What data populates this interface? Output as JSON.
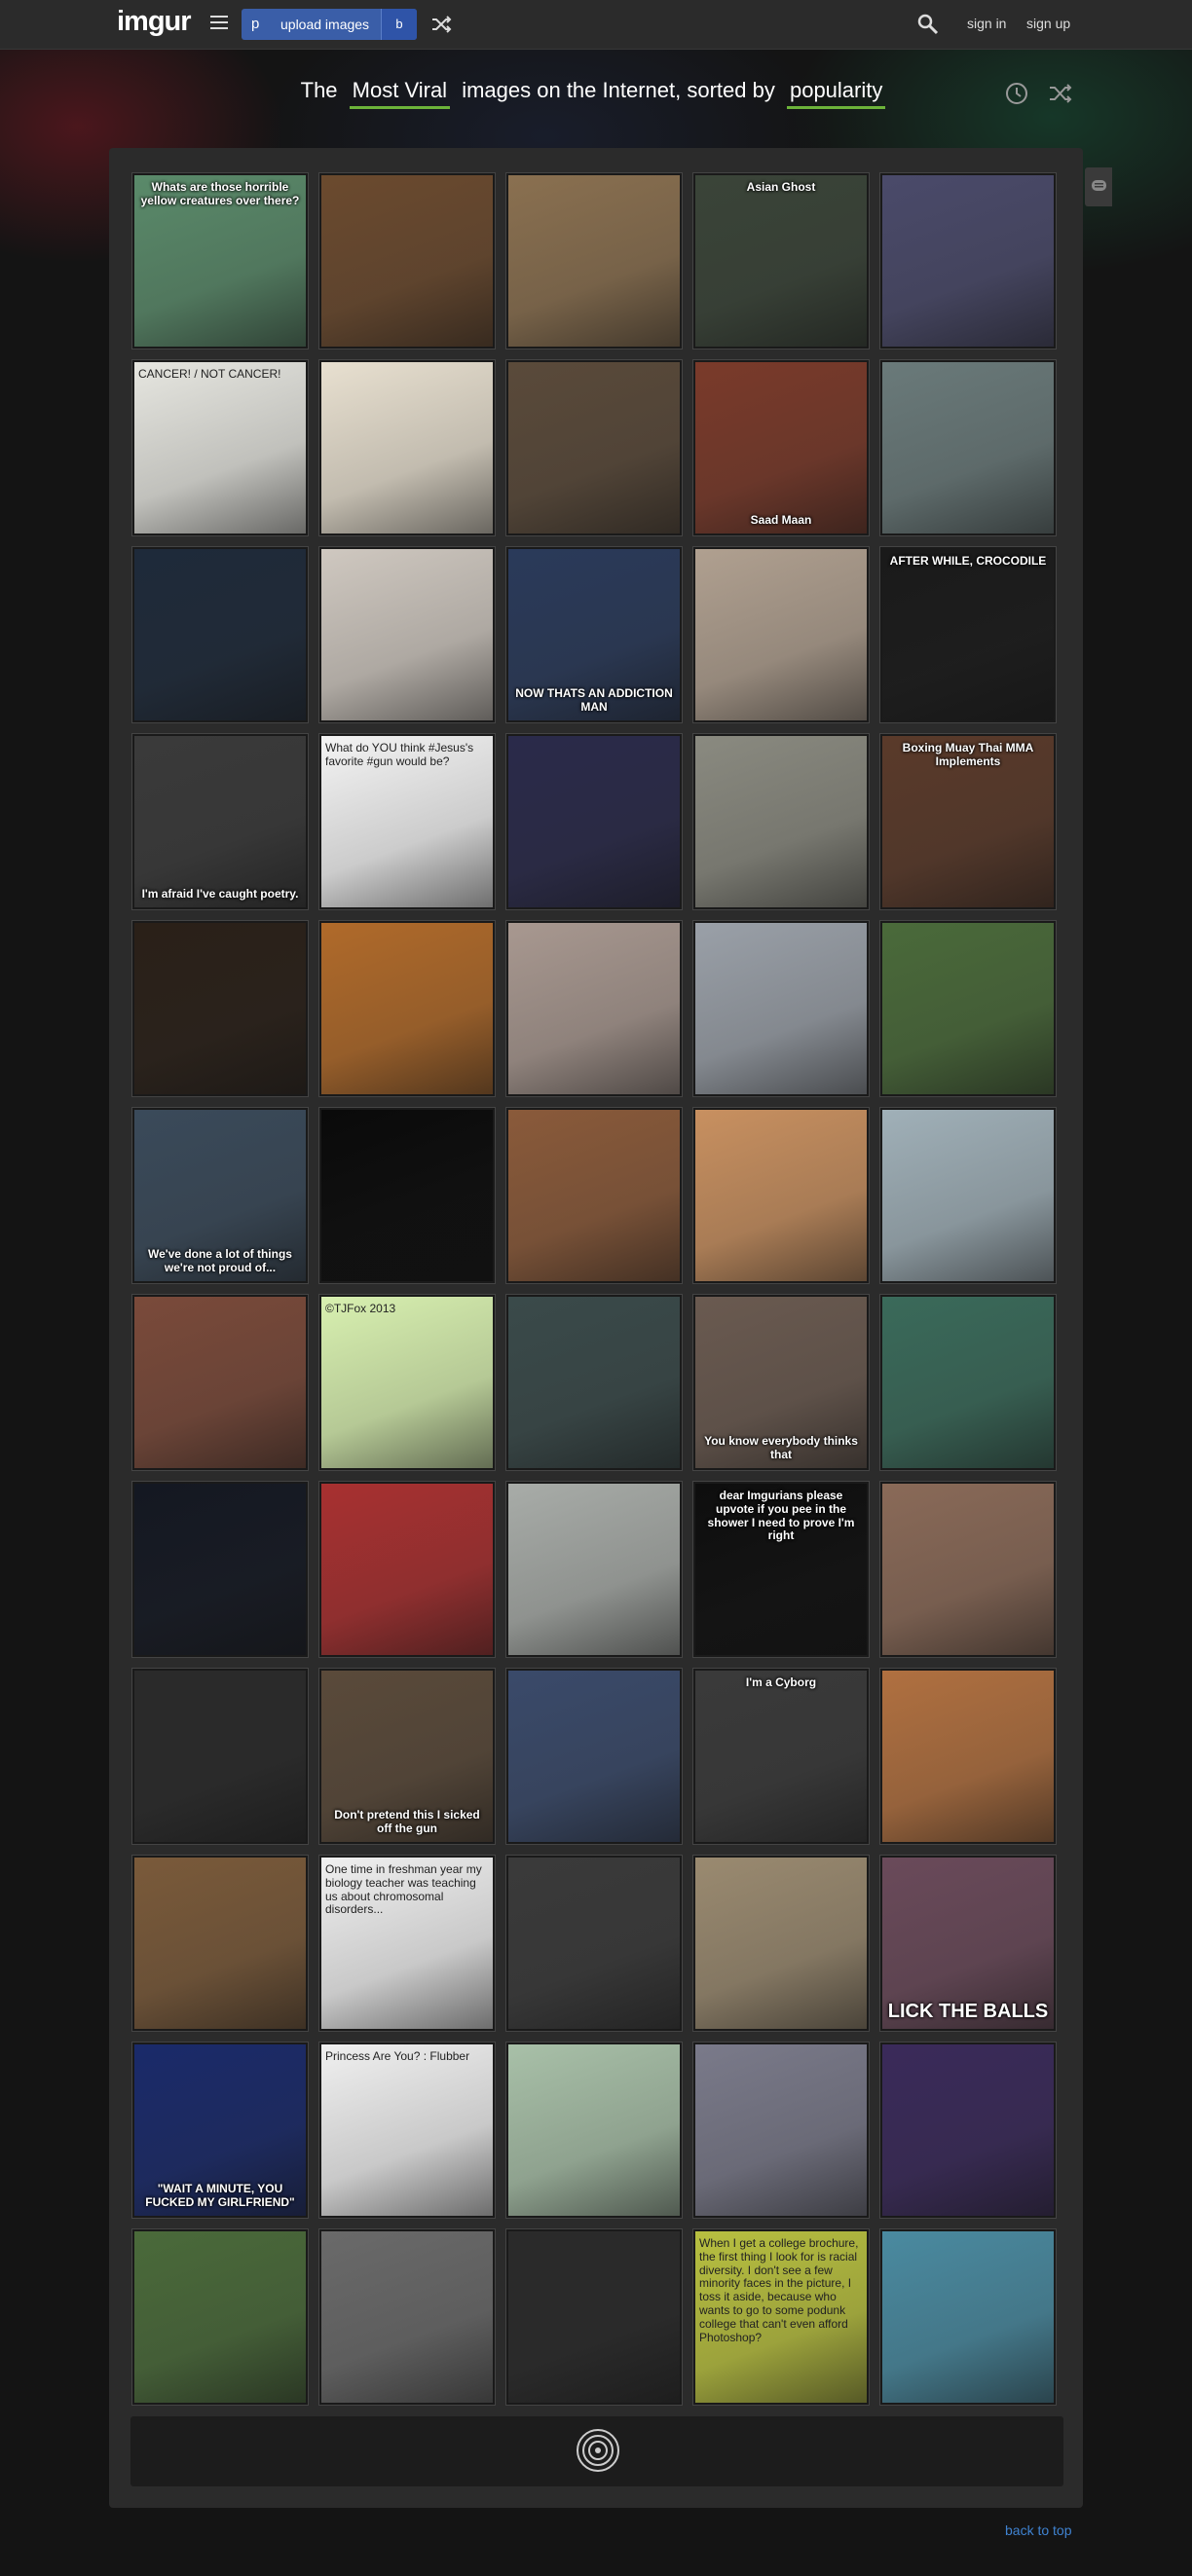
{
  "header": {
    "logo": "imgur",
    "upload_prefix": "p",
    "upload_label": "upload images",
    "upload_dropdown": "b",
    "sign_in": "sign in",
    "sign_up": "sign up"
  },
  "headline": {
    "prefix": "The",
    "section": "Most Viral",
    "middle": "images on the Internet, sorted by",
    "sort": "popularity"
  },
  "footer": {
    "back_to_top": "back to top"
  },
  "colors": {
    "accent_green": "#6cb33a",
    "upload_blue": "#3a5ea8",
    "link_blue": "#3f82d0"
  },
  "gallery": [
    {
      "caption": "Whats are those horrible yellow creatures over there?",
      "pos": "top",
      "bg": "#5a8a6a"
    },
    {
      "caption": "",
      "bg": "#6b4a2e"
    },
    {
      "caption": "",
      "bg": "#8a7050"
    },
    {
      "caption": "Asian Ghost",
      "pos": "top",
      "bg": "#3a4438"
    },
    {
      "caption": "",
      "bg": "#4a4a6a"
    },
    {
      "caption": "CANCER! / NOT CANCER!",
      "pos": "top",
      "dark": true,
      "bg": "#e6e6e0"
    },
    {
      "caption": "",
      "bg": "#e8e0d0"
    },
    {
      "caption": "",
      "bg": "#5a4a3a"
    },
    {
      "caption": "Saad Maan",
      "bg": "#7a3a2a"
    },
    {
      "caption": "",
      "bg": "#6a7a7a"
    },
    {
      "caption": "",
      "bg": "#1e2a3a"
    },
    {
      "caption": "",
      "bg": "#cfc8c0"
    },
    {
      "caption": "NOW THATS AN ADDICTION MAN",
      "bg": "#2a3a5a"
    },
    {
      "caption": "",
      "bg": "#b0a090"
    },
    {
      "caption": "AFTER WHILE, CROCODILE",
      "pos": "top",
      "bg": "#1a1a1a"
    },
    {
      "caption": "I'm afraid I've caught poetry.",
      "bg": "#3a3a3a"
    },
    {
      "caption": "What do YOU think #Jesus's favorite #gun would be?",
      "pos": "top",
      "dark": true,
      "bg": "#f4f4f4"
    },
    {
      "caption": "",
      "bg": "#2a2a4a"
    },
    {
      "caption": "",
      "bg": "#8a8a80"
    },
    {
      "caption": "Boxing Muay Thai MMA Implements",
      "pos": "top",
      "bg": "#5a3a2a"
    },
    {
      "caption": "",
      "bg": "#2a2018"
    },
    {
      "caption": "",
      "bg": "#b06a2a"
    },
    {
      "caption": "",
      "bg": "#a89890"
    },
    {
      "caption": "",
      "bg": "#9aa0a8"
    },
    {
      "caption": "",
      "bg": "#4a6a3a"
    },
    {
      "caption": "We've done a lot of things we're not proud of...",
      "bg": "#3a4a5a"
    },
    {
      "caption": "",
      "bg": "#0a0a0a"
    },
    {
      "caption": "",
      "bg": "#8a5a3a"
    },
    {
      "caption": "",
      "bg": "#c89060"
    },
    {
      "caption": "",
      "bg": "#a0b0b8"
    },
    {
      "caption": "",
      "bg": "#7a4a3a"
    },
    {
      "caption": "©TJFox 2013",
      "pos": "top",
      "dark": true,
      "bg": "#d8f0b0"
    },
    {
      "caption": "",
      "bg": "#3a4a4a"
    },
    {
      "caption": "You know everybody thinks that",
      "bg": "#6a5a50"
    },
    {
      "caption": "",
      "bg": "#3a6a5a"
    },
    {
      "caption": "",
      "bg": "#141822"
    },
    {
      "caption": "",
      "bg": "#a83030"
    },
    {
      "caption": "",
      "bg": "#a8aca8"
    },
    {
      "caption": "dear Imgurians please upvote if you pee in the shower I need to prove I'm right",
      "pos": "top",
      "bg": "#0e0e0e"
    },
    {
      "caption": "",
      "bg": "#8a6a58"
    },
    {
      "caption": "",
      "bg": "#2a2a2a"
    },
    {
      "caption": "Don't pretend this I sicked off the gun",
      "bg": "#5a4a3a"
    },
    {
      "caption": "",
      "bg": "#3a4a6a"
    },
    {
      "caption": "I'm a Cyborg",
      "pos": "top",
      "bg": "#3a3a3a"
    },
    {
      "caption": "",
      "bg": "#b07040"
    },
    {
      "caption": "",
      "bg": "#7a5a3a"
    },
    {
      "caption": "One time in freshman year my biology teacher was teaching us about chromosomal disorders...",
      "pos": "top",
      "dark": true,
      "bg": "#f0f0f0"
    },
    {
      "caption": "",
      "bg": "#3a3a3a"
    },
    {
      "caption": "",
      "bg": "#9a8a70"
    },
    {
      "caption": "LICK THE BALLS",
      "big": true,
      "bg": "#6a4a5a"
    },
    {
      "caption": "\"WAIT A MINUTE, YOU FUCKED MY GIRLFRIEND\"",
      "bg": "#1a2a6a"
    },
    {
      "caption": "Princess Are You? : Flubber",
      "pos": "top",
      "dark": true,
      "bg": "#f0f0f0"
    },
    {
      "caption": "",
      "bg": "#a8c0a8"
    },
    {
      "caption": "",
      "bg": "#7a7a8a"
    },
    {
      "caption": "",
      "bg": "#3a2a5a"
    },
    {
      "caption": "",
      "bg": "#4a6a3a"
    },
    {
      "caption": "",
      "bg": "#6a6a6a"
    },
    {
      "caption": "",
      "bg": "#2a2a2a"
    },
    {
      "caption": "When I get a college brochure, the first thing I look for is racial diversity. I don't see a few minority faces in the picture, I toss it aside, because who wants to go to some podunk college that can't even afford Photoshop?",
      "pos": "top",
      "dark": true,
      "bg": "#b8c040"
    },
    {
      "caption": "",
      "bg": "#4a8aa0"
    }
  ]
}
